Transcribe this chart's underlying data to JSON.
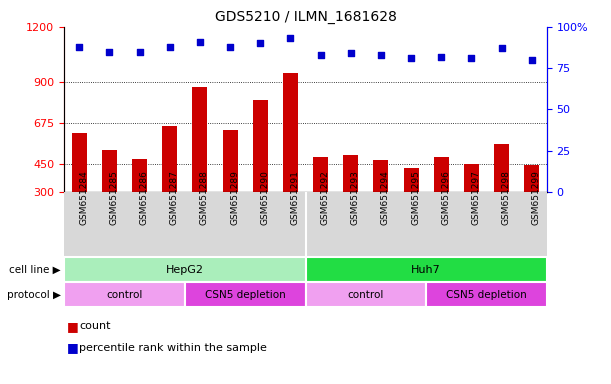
{
  "title": "GDS5210 / ILMN_1681628",
  "samples": [
    "GSM651284",
    "GSM651285",
    "GSM651286",
    "GSM651287",
    "GSM651288",
    "GSM651289",
    "GSM651290",
    "GSM651291",
    "GSM651292",
    "GSM651293",
    "GSM651294",
    "GSM651295",
    "GSM651296",
    "GSM651297",
    "GSM651298",
    "GSM651299"
  ],
  "counts": [
    620,
    530,
    480,
    660,
    870,
    640,
    800,
    950,
    490,
    500,
    475,
    430,
    490,
    450,
    560,
    445
  ],
  "percentiles": [
    88,
    85,
    85,
    88,
    91,
    88,
    90,
    93,
    83,
    84,
    83,
    81,
    82,
    81,
    87,
    80
  ],
  "bar_color": "#cc0000",
  "dot_color": "#0000cc",
  "ylim_left": [
    300,
    1200
  ],
  "ylim_right": [
    0,
    100
  ],
  "yticks_left": [
    300,
    450,
    675,
    900,
    1200
  ],
  "yticks_right": [
    0,
    25,
    50,
    75,
    100
  ],
  "cell_line_groups": [
    {
      "label": "HepG2",
      "start": 0,
      "end": 8,
      "color": "#aaeebb"
    },
    {
      "label": "Huh7",
      "start": 8,
      "end": 16,
      "color": "#22dd44"
    }
  ],
  "protocol_groups": [
    {
      "label": "control",
      "start": 0,
      "end": 4,
      "color": "#f0a0f0"
    },
    {
      "label": "CSN5 depletion",
      "start": 4,
      "end": 8,
      "color": "#dd44dd"
    },
    {
      "label": "control",
      "start": 8,
      "end": 12,
      "color": "#f0a0f0"
    },
    {
      "label": "CSN5 depletion",
      "start": 12,
      "end": 16,
      "color": "#dd44dd"
    }
  ],
  "legend_count_label": "count",
  "legend_percentile_label": "percentile rank within the sample",
  "cell_line_label": "cell line",
  "protocol_label": "protocol",
  "xticklabel_bg": "#d8d8d8",
  "plot_bg_color": "#ffffff",
  "title_fontsize": 10,
  "tick_fontsize": 8,
  "label_fontsize": 8
}
